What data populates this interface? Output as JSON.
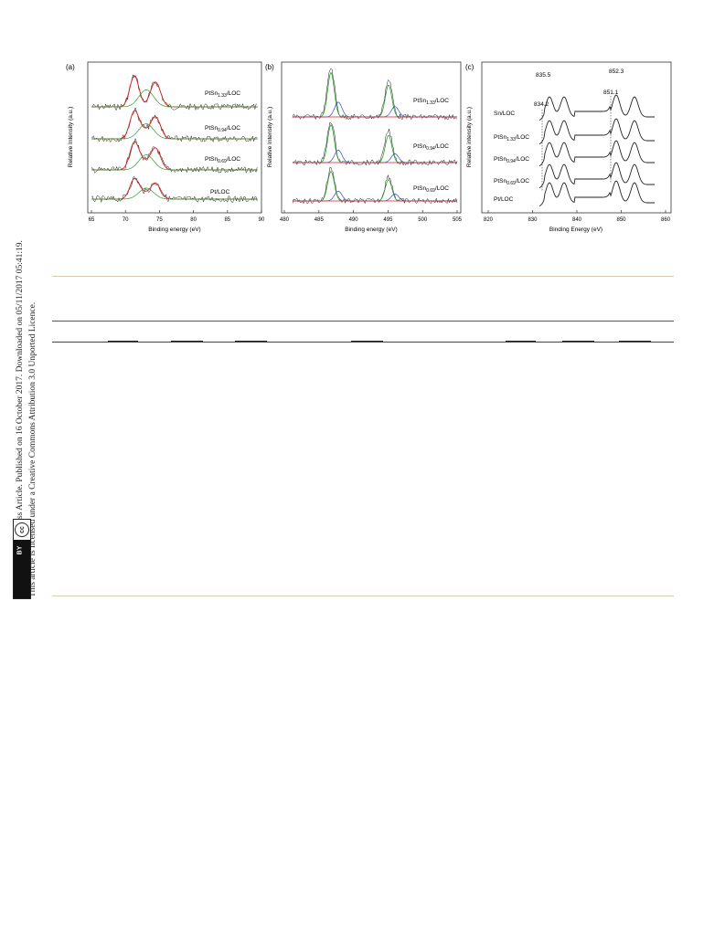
{
  "sidebar": {
    "line1": "Open Access Article. Published on 16 October 2017. Downloaded on 05/11/2017 05:41:19.",
    "line2": "This article is licensed under a Creative Commons Attribution 3.0 Unported Licence.",
    "badge_cc": "cc",
    "badge_by": "BY"
  },
  "figure": {
    "panel_a": {
      "label": "(a)",
      "xlabel": "Binding energy (eV)",
      "ylabel": "Relative Intensity (a.u.)",
      "xticks": [
        "65",
        "70",
        "75",
        "80",
        "85",
        "90"
      ],
      "curves": [
        {
          "label_main": "PtSn",
          "label_sub": "1.33",
          "label_end": "/LOC"
        },
        {
          "label_main": "PtSn",
          "label_sub": "0.94",
          "label_end": "/LOC"
        },
        {
          "label_main": "PtSn",
          "label_sub": "0.69",
          "label_end": "/LOC"
        },
        {
          "label_main": "Pt/LOC",
          "label_sub": "",
          "label_end": ""
        }
      ]
    },
    "panel_b": {
      "label": "(b)",
      "xlabel": "Binding energy (eV)",
      "ylabel": "Relative Intensity (a.u.)",
      "xticks": [
        "480",
        "485",
        "490",
        "495",
        "500",
        "505"
      ],
      "curves": [
        {
          "label_main": "PtSn",
          "label_sub": "1.33",
          "label_end": "/LOC"
        },
        {
          "label_main": "PtSn",
          "label_sub": "0.94",
          "label_end": "/LOC"
        },
        {
          "label_main": "PtSn",
          "label_sub": "0.69",
          "label_end": "/LOC"
        }
      ]
    },
    "panel_c": {
      "label": "(c)",
      "xlabel": "Binding Energy (eV)",
      "ylabel": "Relative intensity (a.u.)",
      "xticks": [
        "820",
        "830",
        "840",
        "850",
        "860"
      ],
      "annotations": [
        "835.5",
        "852.3",
        "834.2",
        "851.1"
      ],
      "curves": [
        {
          "label_main": "Sn/LOC",
          "label_sub": "",
          "label_end": ""
        },
        {
          "label_main": "PtSn",
          "label_sub": "1.33",
          "label_end": "/LOC"
        },
        {
          "label_main": "PtSn",
          "label_sub": "0.94",
          "label_end": "/LOC"
        },
        {
          "label_main": "PtSn",
          "label_sub": "0.69",
          "label_end": "/LOC"
        },
        {
          "label_main": "Pt/LOC",
          "label_sub": "",
          "label_end": ""
        }
      ]
    }
  },
  "colors": {
    "data": "#1a1a1a",
    "fit_red": "#d42020",
    "fit_green": "#2e9e2e",
    "fit_blue": "#3050c0",
    "fit_pink": "#c040a0",
    "rule_gold": "#d8ccb0",
    "rule_dark": "#444444"
  }
}
